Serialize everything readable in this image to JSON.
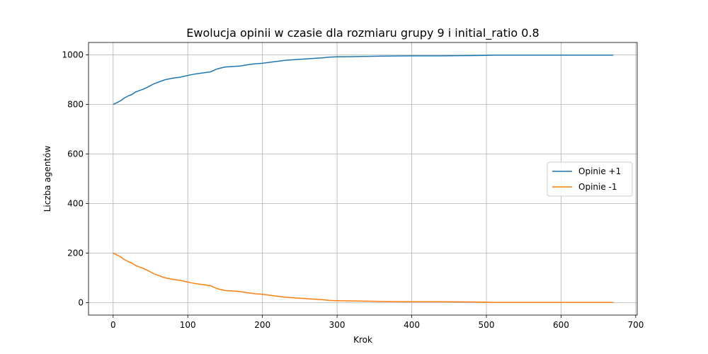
{
  "chart_data": {
    "type": "line",
    "title": "Ewolucja opinii w czasie dla rozmiaru grupy 9 i initial_ratio 0.8",
    "xlabel": "Krok",
    "ylabel": "Liczba agentów",
    "xlim": [
      -33,
      702
    ],
    "ylim": [
      -50,
      1050
    ],
    "xticks": [
      0,
      100,
      200,
      300,
      400,
      500,
      600,
      700
    ],
    "yticks": [
      0,
      200,
      400,
      600,
      800,
      1000
    ],
    "grid": true,
    "legend_position": "center-right",
    "series": [
      {
        "name": "Opinie +1",
        "color": "#1f77b4",
        "x": [
          0,
          5,
          10,
          15,
          20,
          25,
          30,
          35,
          40,
          45,
          50,
          55,
          60,
          65,
          70,
          80,
          90,
          100,
          110,
          120,
          130,
          140,
          150,
          160,
          170,
          180,
          190,
          200,
          210,
          220,
          230,
          240,
          250,
          260,
          270,
          280,
          290,
          300,
          320,
          340,
          360,
          400,
          440,
          480,
          500,
          510,
          550,
          600,
          670
        ],
        "y": [
          800,
          807,
          815,
          826,
          834,
          840,
          850,
          856,
          861,
          868,
          876,
          884,
          889,
          895,
          900,
          906,
          910,
          917,
          923,
          927,
          931,
          944,
          951,
          953,
          955,
          960,
          964,
          966,
          970,
          974,
          978,
          980,
          982,
          984,
          986,
          988,
          991,
          992,
          993,
          994,
          995,
          996,
          996,
          997,
          998,
          999,
          999,
          999,
          999
        ]
      },
      {
        "name": "Opinie -1",
        "color": "#ff7f0e",
        "x": [
          0,
          5,
          10,
          15,
          20,
          25,
          30,
          35,
          40,
          45,
          50,
          55,
          60,
          65,
          70,
          80,
          90,
          100,
          110,
          120,
          130,
          140,
          150,
          160,
          170,
          180,
          190,
          200,
          210,
          220,
          230,
          240,
          250,
          260,
          270,
          280,
          290,
          300,
          320,
          340,
          360,
          400,
          440,
          480,
          500,
          510,
          550,
          600,
          670
        ],
        "y": [
          200,
          193,
          185,
          174,
          166,
          160,
          150,
          144,
          139,
          132,
          124,
          116,
          111,
          105,
          100,
          94,
          90,
          83,
          77,
          73,
          69,
          56,
          49,
          47,
          45,
          40,
          36,
          34,
          30,
          26,
          22,
          20,
          18,
          16,
          14,
          12,
          9,
          8,
          7,
          6,
          5,
          4,
          4,
          3,
          2,
          1,
          1,
          1,
          1
        ]
      }
    ]
  }
}
